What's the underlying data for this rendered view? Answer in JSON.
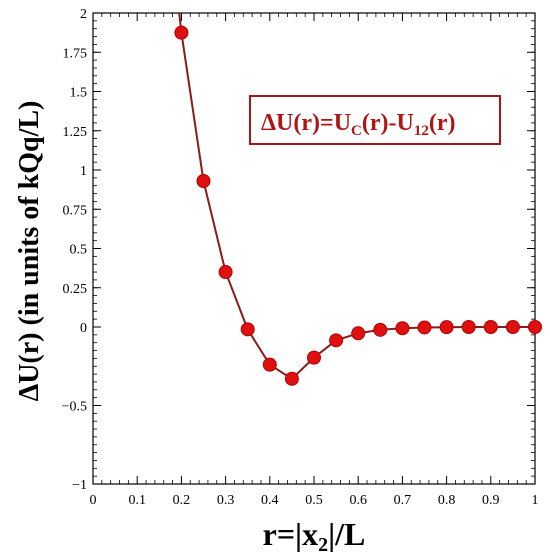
{
  "chart_data": {
    "type": "line",
    "title": "",
    "xlabel": "r=|x",
    "xlabel_sub": "2",
    "xlabel_suffix": "|/L",
    "ylabel": "ΔU(r) (in units of kQq/L)",
    "xlim": [
      0,
      1
    ],
    "ylim": [
      -1,
      2
    ],
    "x_ticks": [
      0,
      0.1,
      0.2,
      0.3,
      0.4,
      0.5,
      0.6,
      0.7,
      0.8,
      0.9,
      1
    ],
    "x_tick_labels": [
      "0",
      "0.1",
      "0.2",
      "0.3",
      "0.4",
      "0.5",
      "0.6",
      "0.7",
      "0.8",
      "0.9",
      "1"
    ],
    "y_ticks": [
      -1,
      -0.5,
      0,
      0.25,
      0.5,
      0.75,
      1,
      1.25,
      1.5,
      1.75,
      2
    ],
    "y_tick_labels": [
      "−1",
      "−0.5",
      "0",
      "0.25",
      "0.5",
      "0.75",
      "1",
      "1.25",
      "1.5",
      "1.75",
      "2"
    ],
    "grid": false,
    "legend": {
      "placement": "top-right",
      "text": "ΔU(r)=U",
      "sub1": "C",
      "mid": "(r)-U",
      "sub2": "12",
      "end": "(r)"
    },
    "colors": {
      "line": "#8b1a1a",
      "marker": "#e01010",
      "marker_edge": "#b00000",
      "legend_border": "#a01818"
    },
    "series": [
      {
        "x": [
          0.2,
          0.25,
          0.3,
          0.35,
          0.4,
          0.45,
          0.5,
          0.55,
          0.6,
          0.65,
          0.7,
          0.75,
          0.8,
          0.85,
          0.9,
          0.95,
          1.0
        ],
        "y": [
          1.875,
          0.93,
          0.35,
          -0.015,
          -0.24,
          -0.33,
          -0.195,
          -0.085,
          -0.04,
          -0.018,
          -0.008,
          -0.003,
          -0.001,
          0.0,
          0.0,
          0.0,
          0.0
        ]
      }
    ],
    "curve_extension": {
      "x": 0.195,
      "y": 2.0
    }
  }
}
